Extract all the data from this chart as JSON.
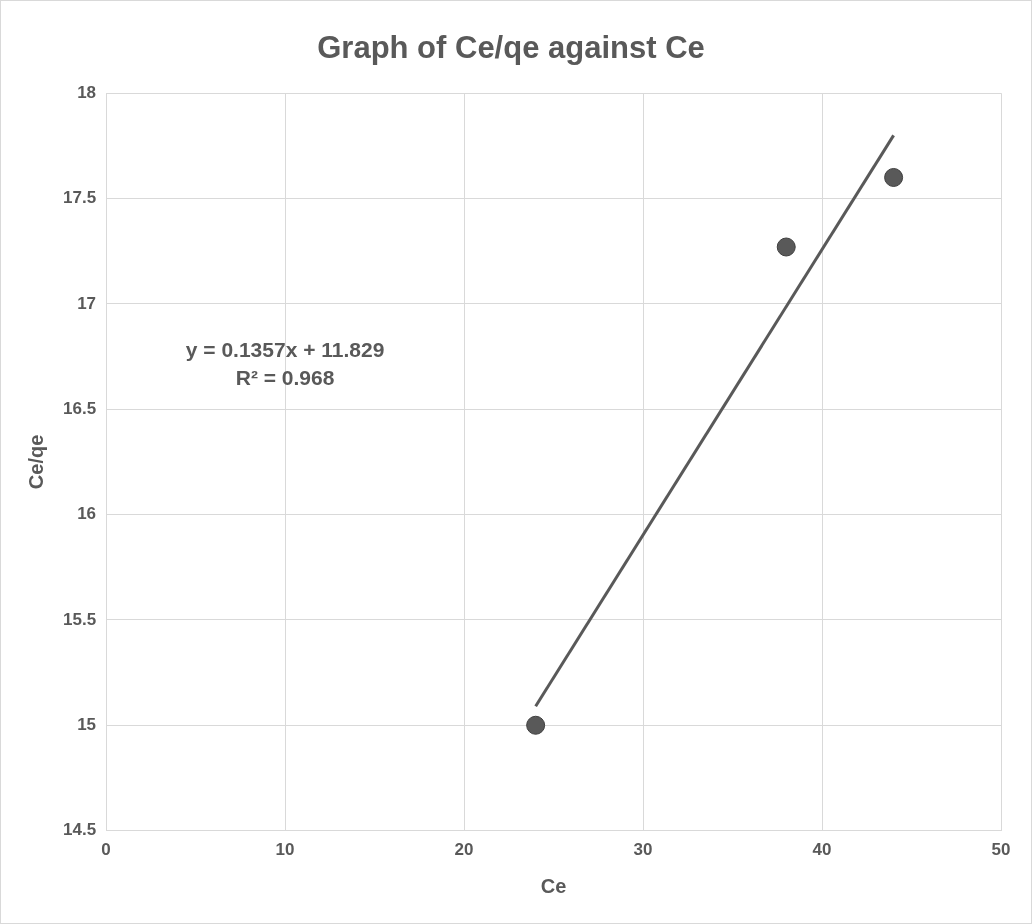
{
  "chart_data": {
    "type": "scatter",
    "title": "Graph of Ce/qe against Ce",
    "xlabel": "Ce",
    "ylabel": "Ce/qe",
    "xlim": [
      0,
      50
    ],
    "xticks": [
      0,
      10,
      20,
      30,
      40,
      50
    ],
    "ylim": [
      14.5,
      18
    ],
    "yticks": [
      14.5,
      15,
      15.5,
      16,
      16.5,
      17,
      17.5,
      18
    ],
    "grid": true,
    "legend": false,
    "marker": "circle",
    "series": [
      {
        "type": "scatter",
        "color": "#595959",
        "x": [
          24,
          38,
          44
        ],
        "values": [
          15.0,
          17.27,
          17.6
        ]
      },
      {
        "type": "line",
        "color": "#595959",
        "marker": "none",
        "line_style": "solid",
        "x": [
          24,
          44
        ],
        "values": [
          15.09,
          17.8
        ]
      }
    ],
    "annotations": [
      "y = 0.1357x + 11.829",
      "R² = 0.968"
    ]
  }
}
